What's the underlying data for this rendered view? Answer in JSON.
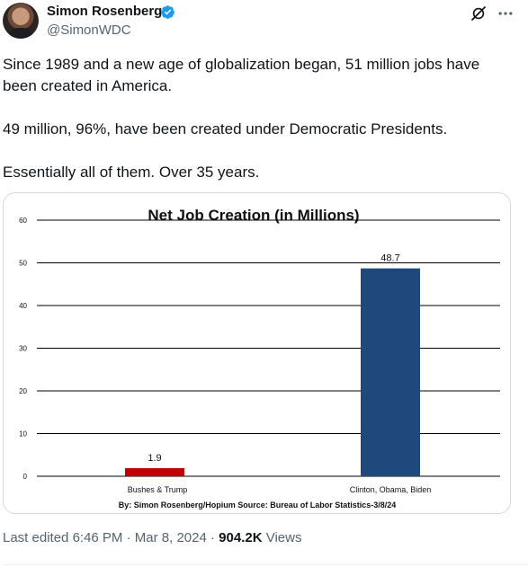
{
  "author": {
    "name": "Simon Rosenberg",
    "handle": "@SimonWDC"
  },
  "icons": {
    "verified": "verified-badge-icon",
    "grok": "grok-icon",
    "more": "more-icon"
  },
  "colors": {
    "verified": "#1d9bf0",
    "bar_red": "#c00000",
    "bar_blue": "#1f497d"
  },
  "tweet": {
    "paragraphs": [
      "Since 1989 and a new age of globalization began, 51 million jobs have been created in America.",
      "49 million, 96%, have been created under Democratic Presidents.",
      "Essentially all of them.  Over 35 years."
    ]
  },
  "chart_data": {
    "type": "bar",
    "title": "Net Job Creation (in Millions)",
    "categories": [
      "Bushes & Trump",
      "Clinton, Obama, Biden"
    ],
    "values": [
      1.9,
      48.7
    ],
    "data_labels": [
      "1.9",
      "48.7"
    ],
    "bar_colors": [
      "#c00000",
      "#1f497d"
    ],
    "ylim": [
      0,
      60
    ],
    "yticks": [
      "0",
      "10",
      "20",
      "30",
      "40",
      "50",
      "60"
    ],
    "grid": true,
    "source": "By: Simon Rosenberg/Hopium Source: Bureau of Labor Statistics-3/8/24"
  },
  "meta": {
    "edited_prefix": "Last edited ",
    "time": "6:46 PM",
    "sep1": " · ",
    "date": "Mar 8, 2024",
    "sep2": " · ",
    "views_count": "904.2K",
    "views_label": " Views"
  }
}
